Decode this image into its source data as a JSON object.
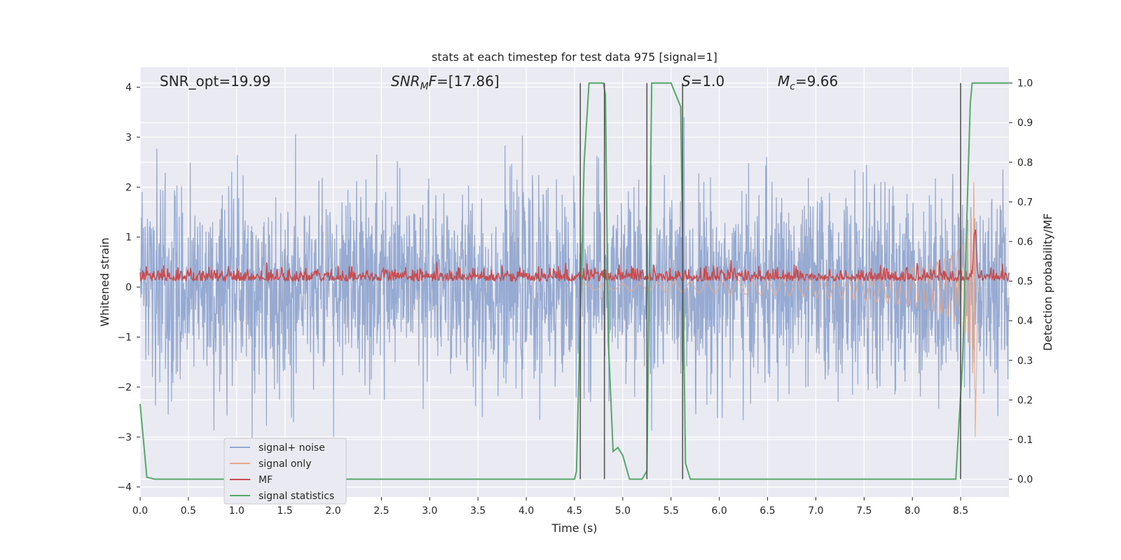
{
  "chart_data": {
    "type": "line",
    "title": "stats at each timestep for test data 975 [signal=1]",
    "xlabel": "Time (s)",
    "ylabel": "Whitened strain",
    "y2label": "Detection probability/MF",
    "xlim": [
      0,
      9.0
    ],
    "ylim": [
      -4.2,
      4.4
    ],
    "y2lim": [
      -0.045,
      1.04
    ],
    "x_ticks": [
      0.0,
      0.5,
      1.0,
      1.5,
      2.0,
      2.5,
      3.0,
      3.5,
      4.0,
      4.5,
      5.0,
      5.5,
      6.0,
      6.5,
      7.0,
      7.5,
      8.0,
      8.5
    ],
    "x_tick_labels": [
      "0.0",
      "0.5",
      "1.0",
      "1.5",
      "2.0",
      "2.5",
      "3.0",
      "3.5",
      "4.0",
      "4.5",
      "5.0",
      "5.5",
      "6.0",
      "6.5",
      "7.0",
      "7.5",
      "8.0",
      "8.5"
    ],
    "y_ticks": [
      -4,
      -3,
      -2,
      -1,
      0,
      1,
      2,
      3,
      4
    ],
    "y_tick_labels": [
      "−4",
      "−3",
      "−2",
      "−1",
      "0",
      "1",
      "2",
      "3",
      "4"
    ],
    "y2_ticks": [
      0.0,
      0.1,
      0.2,
      0.3,
      0.4,
      0.5,
      0.6,
      0.7,
      0.8,
      0.9,
      1.0
    ],
    "y2_tick_labels": [
      "0.0",
      "0.1",
      "0.2",
      "0.3",
      "0.4",
      "0.5",
      "0.6",
      "0.7",
      "0.8",
      "0.9",
      "1.0"
    ],
    "grid": true,
    "legend_position": "lower-left",
    "annotations": [
      {
        "text": "SNR_opt=19.99",
        "x": 0.2
      },
      {
        "text": "SNR_MF=[17.86]",
        "x": 2.6
      },
      {
        "text": "S=1.0",
        "x": 5.6
      },
      {
        "text": "M_c=9.66",
        "x": 6.6
      }
    ],
    "series": [
      {
        "name": "signal+ noise",
        "color": "#92a6cf",
        "axis": "left",
        "description_values": "Gaussian noise with typical amplitude about ±1.5, peaks up to ±3.4, spanning the full time range"
      },
      {
        "name": "signal only",
        "color": "#e8a88c",
        "axis": "left",
        "chirp": {
          "start_time": 4.6,
          "merger_time": 8.65,
          "start_amplitude": 0.05,
          "peak_amplitude": 2.1,
          "min_value": -3.0
        }
      },
      {
        "name": "MF",
        "color": "#c44e52",
        "axis": "right",
        "baseline": 0.5,
        "noise_amplitude": 0.02,
        "peak": {
          "x": 8.65,
          "y": 0.62
        }
      },
      {
        "name": "signal statistics",
        "color": "#55a868",
        "axis": "right",
        "x": [
          0.0,
          0.07,
          0.15,
          0.5,
          1.0,
          1.5,
          2.0,
          2.5,
          3.0,
          3.5,
          4.0,
          4.5,
          4.52,
          4.6,
          4.65,
          4.7,
          4.8,
          4.82,
          4.85,
          4.9,
          4.95,
          5.0,
          5.07,
          5.2,
          5.25,
          5.3,
          5.5,
          5.6,
          5.65,
          5.7,
          6.0,
          6.5,
          7.0,
          7.5,
          8.0,
          8.45,
          8.52,
          8.6,
          8.62,
          8.7,
          9.0
        ],
        "y": [
          0.19,
          0.005,
          0.0,
          0.0,
          0.0,
          0.0,
          0.0,
          0.0,
          0.0,
          0.0,
          0.0,
          0.0,
          0.02,
          0.8,
          1.0,
          1.0,
          1.0,
          0.97,
          0.35,
          0.07,
          0.08,
          0.06,
          0.0,
          0.0,
          0.02,
          1.0,
          1.0,
          0.94,
          0.04,
          0.0,
          0.0,
          0.0,
          0.0,
          0.0,
          0.0,
          0.0,
          0.3,
          0.95,
          1.0,
          1.0,
          1.0
        ]
      }
    ],
    "vertical_lines": [
      4.56,
      4.81,
      5.25,
      5.62,
      8.5
    ],
    "vertical_lines_color": "#555555"
  },
  "legend": [
    {
      "label": "signal+ noise",
      "color": "#92a6cf"
    },
    {
      "label": "signal only",
      "color": "#e8a88c"
    },
    {
      "label": "MF",
      "color": "#c44e52"
    },
    {
      "label": "signal statistics",
      "color": "#55a868"
    }
  ]
}
